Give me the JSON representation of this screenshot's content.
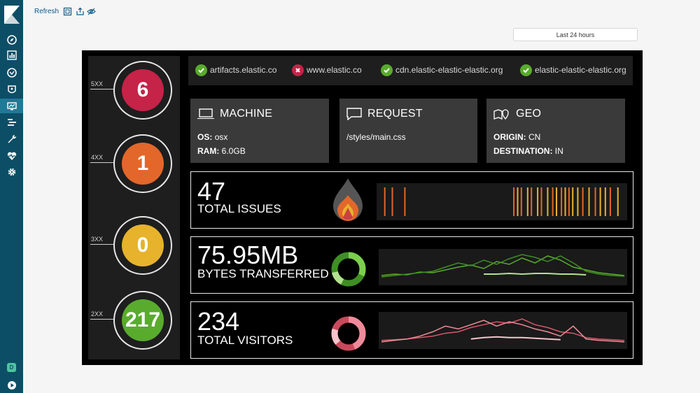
{
  "toolbar": {
    "refresh_label": "Refresh",
    "time_range": "Last 24 hours"
  },
  "sidebar": {
    "icons": [
      "logo-icon",
      "discover-icon",
      "visualize-icon",
      "timelion-icon",
      "dashboard-icon",
      "canvas-icon",
      "logs-icon",
      "devtools-icon",
      "monitoring-icon",
      "settings-icon",
      "user-avatar-icon",
      "collapse-icon"
    ],
    "user_initial": "D"
  },
  "status_codes": [
    {
      "label": "5XX",
      "value": "6",
      "color": "#c52348"
    },
    {
      "label": "4XX",
      "value": "1",
      "color": "#e3672a"
    },
    {
      "label": "3XX",
      "value": "0",
      "color": "#e7b32c"
    },
    {
      "label": "2XX",
      "value": "217",
      "color": "#59ab2d"
    }
  ],
  "sites": [
    {
      "name": "artifacts.elastic.co",
      "status": "up"
    },
    {
      "name": "www.elastic.co",
      "status": "down"
    },
    {
      "name": "cdn.elastic-elastic-elastic.org",
      "status": "up"
    },
    {
      "name": "elastic-elastic-elastic.org",
      "status": "up"
    }
  ],
  "machine": {
    "title": "MACHINE",
    "os_label": "OS:",
    "os_value": "osx",
    "ram_label": "RAM:",
    "ram_value": "6.0GB"
  },
  "request": {
    "title": "REQUEST",
    "path": "/styles/main.css"
  },
  "geo": {
    "title": "GEO",
    "origin_label": "ORIGIN:",
    "origin_value": "CN",
    "destination_label": "DESTINATION:",
    "destination_value": "IN"
  },
  "metrics": {
    "issues": {
      "value": "47",
      "label": "TOTAL ISSUES"
    },
    "bytes": {
      "value": "75.95MB",
      "label": "BYTES TRANSFERRED"
    },
    "visitors": {
      "value": "234",
      "label": "TOTAL VISITORS"
    }
  },
  "chart_data": [
    {
      "type": "bar",
      "description_series": "issues timeline",
      "bars": [
        {
          "x": 0.03,
          "color": "#e3672a"
        },
        {
          "x": 0.06,
          "color": "#e3672a"
        },
        {
          "x": 0.11,
          "color": "#e3672a"
        },
        {
          "x": 0.545,
          "color": "#e3672a"
        },
        {
          "x": 0.56,
          "color": "#e7b32c"
        },
        {
          "x": 0.575,
          "color": "#e3672a"
        },
        {
          "x": 0.6,
          "color": "#e7b32c"
        },
        {
          "x": 0.615,
          "color": "#e3672a"
        },
        {
          "x": 0.64,
          "color": "#e7b32c"
        },
        {
          "x": 0.655,
          "color": "#e3672a"
        },
        {
          "x": 0.68,
          "color": "#e7b32c"
        },
        {
          "x": 0.7,
          "color": "#e3672a"
        },
        {
          "x": 0.715,
          "color": "#e7b32c"
        },
        {
          "x": 0.735,
          "color": "#e3672a"
        },
        {
          "x": 0.75,
          "color": "#e7b32c"
        },
        {
          "x": 0.765,
          "color": "#e3672a"
        },
        {
          "x": 0.78,
          "color": "#e7b32c"
        },
        {
          "x": 0.8,
          "color": "#e7b32c"
        },
        {
          "x": 0.82,
          "color": "#e3672a"
        },
        {
          "x": 0.845,
          "color": "#e7b32c"
        },
        {
          "x": 0.87,
          "color": "#e3672a"
        },
        {
          "x": 0.89,
          "color": "#e7b32c"
        },
        {
          "x": 0.91,
          "color": "#e7b32c"
        },
        {
          "x": 0.93,
          "color": "#e3672a"
        },
        {
          "x": 0.96,
          "color": "#e7b32c"
        }
      ]
    },
    {
      "type": "line",
      "series": [
        {
          "color": "#59ab2d",
          "values": [
            10,
            12,
            11,
            15,
            14,
            18,
            22,
            25,
            20,
            30,
            26,
            35,
            28,
            38,
            32,
            22,
            18,
            14,
            12,
            10
          ]
        },
        {
          "color": "#3f8f24",
          "values": [
            8,
            10,
            12,
            14,
            16,
            22,
            28,
            24,
            32,
            26,
            34,
            40,
            36,
            30,
            38,
            28,
            16,
            12,
            10,
            9
          ]
        },
        {
          "color": "#b3e28f",
          "values": [
            null,
            null,
            null,
            null,
            null,
            null,
            null,
            null,
            12,
            12,
            13,
            12,
            13,
            13,
            12,
            12,
            11,
            null,
            null,
            null
          ]
        }
      ]
    },
    {
      "type": "line",
      "series": [
        {
          "color": "#d6566a",
          "values": [
            8,
            9,
            10,
            12,
            14,
            18,
            20,
            26,
            30,
            34,
            32,
            38,
            30,
            26,
            20,
            18,
            12,
            10,
            9,
            8
          ]
        },
        {
          "color": "#f08a9a",
          "values": [
            6,
            8,
            10,
            14,
            20,
            28,
            24,
            30,
            36,
            28,
            34,
            30,
            24,
            20,
            14,
            28,
            10,
            8,
            7,
            6
          ]
        },
        {
          "color": "#f7c4cc",
          "values": [
            null,
            null,
            null,
            null,
            null,
            null,
            null,
            10,
            12,
            13,
            12,
            12,
            11,
            10,
            9,
            null,
            null,
            null,
            null,
            null
          ]
        }
      ]
    }
  ]
}
